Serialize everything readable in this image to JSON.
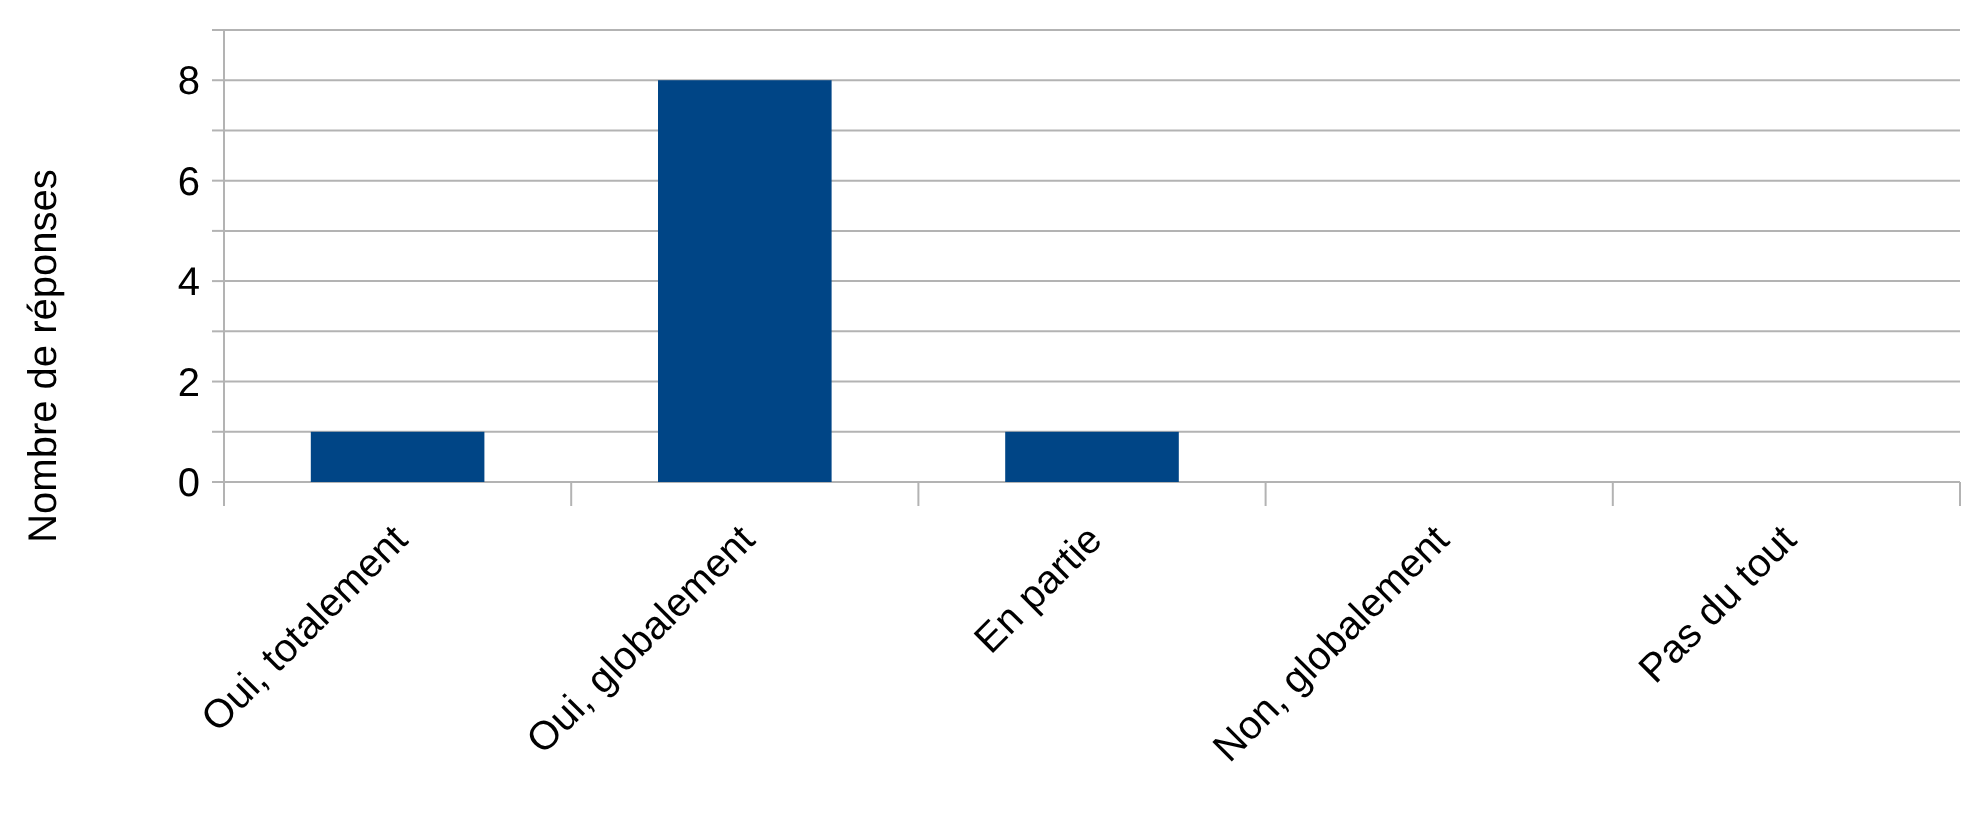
{
  "chart_data": {
    "type": "bar",
    "ylabel": "Nombre de réponses",
    "categories": [
      "Oui, totalement",
      "Oui, globalement",
      "En partie",
      "Non, globalement",
      "Pas du tout"
    ],
    "values": [
      1,
      8,
      1,
      0,
      0
    ],
    "color": "#004586",
    "ylim": [
      0,
      9
    ],
    "yticks": [
      0,
      {
        "value": 1,
        "label": null
      },
      2,
      {
        "value": 3,
        "label": null
      },
      4,
      {
        "value": 5,
        "label": null
      },
      6,
      {
        "value": 7,
        "label": null
      },
      8,
      {
        "value": 9,
        "label": null
      }
    ],
    "grid": "y"
  }
}
